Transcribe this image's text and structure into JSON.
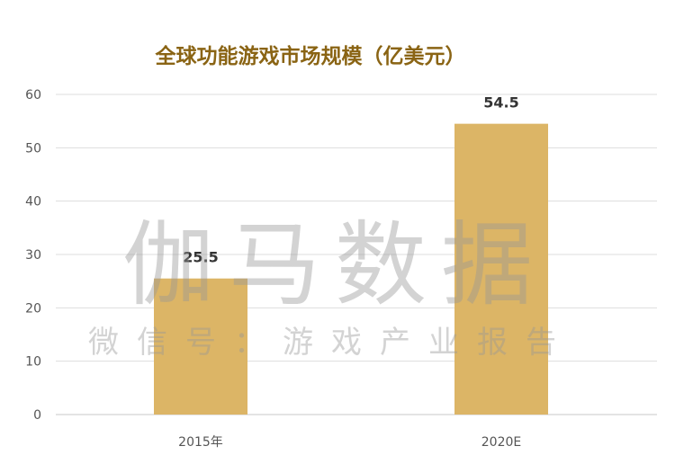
{
  "chart_data": {
    "type": "bar",
    "title": "全球功能游戏市场规模（亿美元）",
    "categories": [
      "2015年",
      "2020E"
    ],
    "values": [
      25.5,
      54.5
    ],
    "data_labels": [
      "25.5",
      "54.5"
    ],
    "ylim": [
      0,
      60
    ],
    "yticks": [
      "0",
      "10",
      "20",
      "30",
      "40",
      "50",
      "60"
    ],
    "xlabel": "",
    "ylabel": "",
    "grid": true,
    "bar_color": "#dcb566",
    "title_color": "#8a6414"
  },
  "watermark": {
    "main": "伽马数据",
    "sub": "微信号：游戏产业报告"
  }
}
